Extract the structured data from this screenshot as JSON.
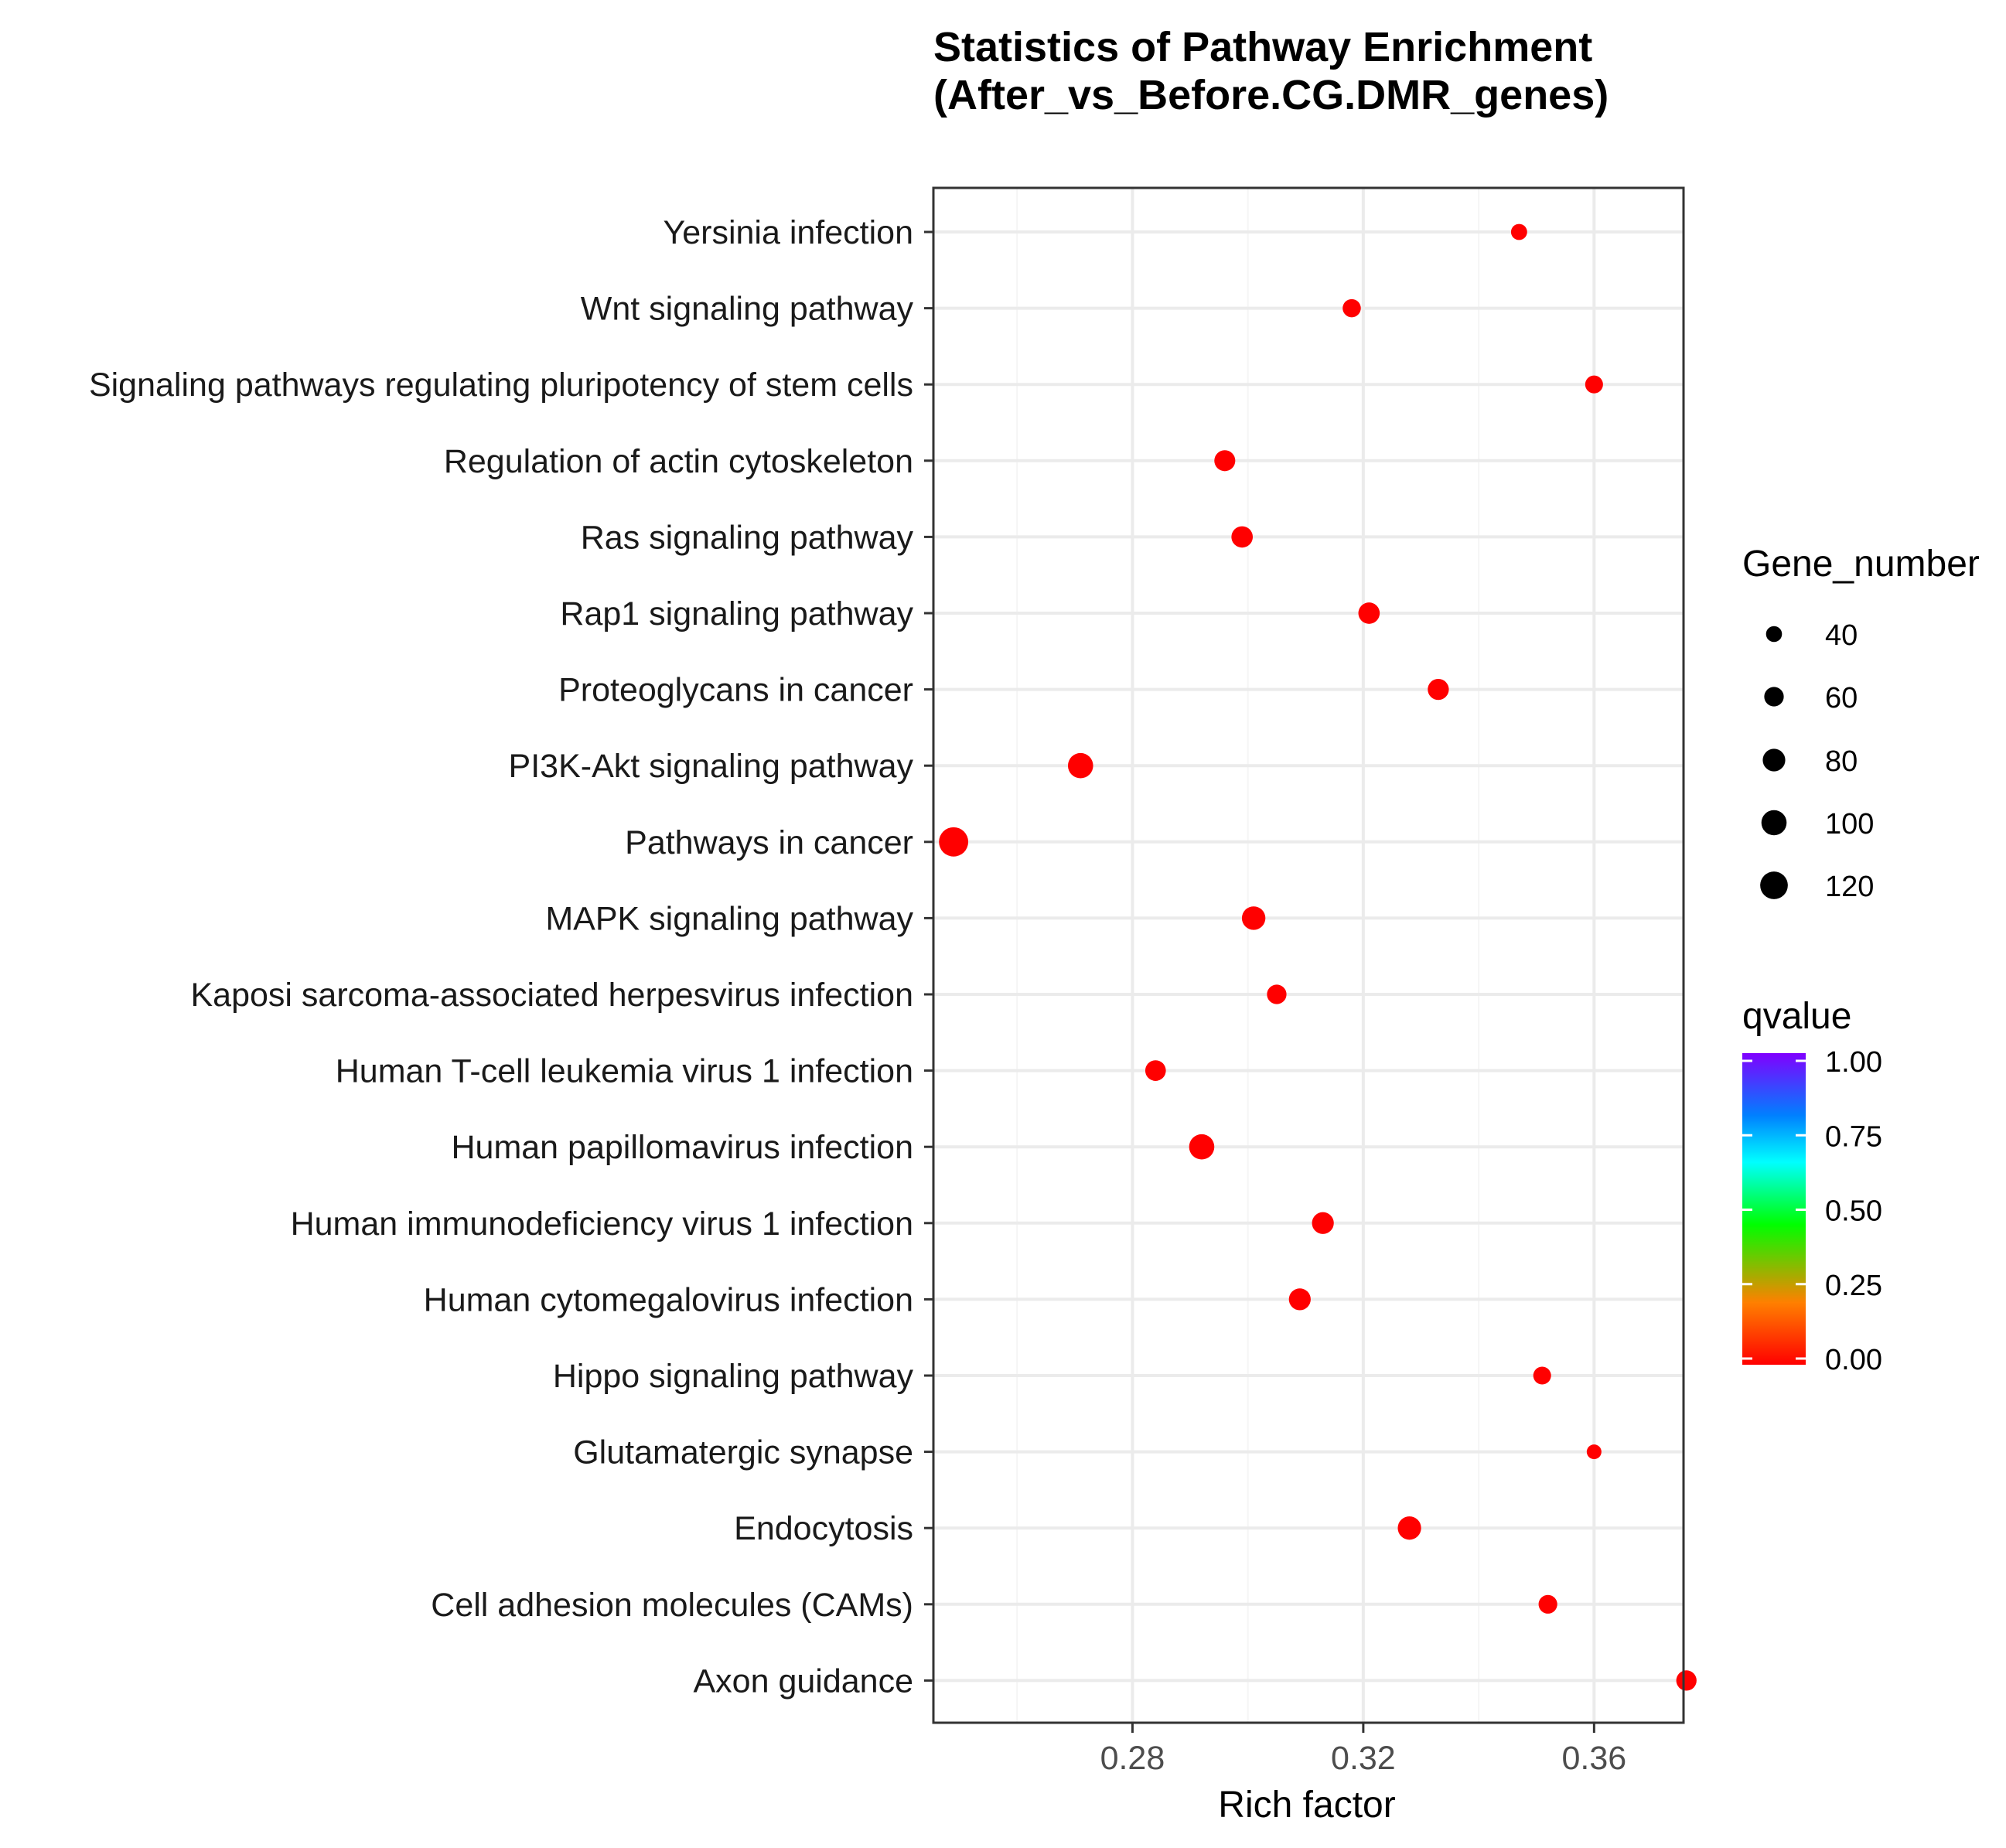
{
  "chart_data": {
    "type": "scatter",
    "title": "Statistics of Pathway Enrichment",
    "subtitle": "(After_vs_Before.CG.DMR_genes)",
    "xlabel": "Rich factor",
    "ylabel": "",
    "xlim": [
      0.2455,
      0.3755
    ],
    "xticks": [
      0.28,
      0.32,
      0.36
    ],
    "xtick_labels": [
      "0.28",
      "0.32",
      "0.36"
    ],
    "minor_xticks": [
      0.26,
      0.3,
      0.34
    ],
    "grid": true,
    "points": [
      {
        "pathway": "Yersinia infection",
        "rich_factor": 0.347,
        "gene_number": 41,
        "qvalue": 0.0
      },
      {
        "pathway": "Wnt signaling pathway",
        "rich_factor": 0.318,
        "gene_number": 52,
        "qvalue": 0.0
      },
      {
        "pathway": "Signaling pathways regulating pluripotency of stem cells",
        "rich_factor": 0.36,
        "gene_number": 50,
        "qvalue": 0.0
      },
      {
        "pathway": "Regulation of actin cytoskeleton",
        "rich_factor": 0.296,
        "gene_number": 69,
        "qvalue": 0.0
      },
      {
        "pathway": "Ras signaling pathway",
        "rich_factor": 0.299,
        "gene_number": 72,
        "qvalue": 0.0
      },
      {
        "pathway": "Rap1 signaling pathway",
        "rich_factor": 0.321,
        "gene_number": 72,
        "qvalue": 0.0
      },
      {
        "pathway": "Proteoglycans in cancer",
        "rich_factor": 0.333,
        "gene_number": 70,
        "qvalue": 0.0
      },
      {
        "pathway": "PI3K-Akt signaling pathway",
        "rich_factor": 0.271,
        "gene_number": 100,
        "qvalue": 0.0
      },
      {
        "pathway": "Pathways in cancer",
        "rich_factor": 0.249,
        "gene_number": 135,
        "qvalue": 0.0
      },
      {
        "pathway": "MAPK signaling pathway",
        "rich_factor": 0.301,
        "gene_number": 87,
        "qvalue": 0.0
      },
      {
        "pathway": "Kaposi sarcoma-associated herpesvirus infection",
        "rich_factor": 0.305,
        "gene_number": 60,
        "qvalue": 0.0
      },
      {
        "pathway": "Human T-cell leukemia virus 1 infection",
        "rich_factor": 0.284,
        "gene_number": 67,
        "qvalue": 0.0
      },
      {
        "pathway": "Human papillomavirus infection",
        "rich_factor": 0.292,
        "gene_number": 100,
        "qvalue": 0.0
      },
      {
        "pathway": "Human immunodeficiency virus 1 infection",
        "rich_factor": 0.313,
        "gene_number": 75,
        "qvalue": 0.0
      },
      {
        "pathway": "Human cytomegalovirus infection",
        "rich_factor": 0.309,
        "gene_number": 75,
        "qvalue": 0.0
      },
      {
        "pathway": "Hippo signaling pathway",
        "rich_factor": 0.351,
        "gene_number": 50,
        "qvalue": 0.0
      },
      {
        "pathway": "Glutamatergic synapse",
        "rich_factor": 0.36,
        "gene_number": 34,
        "qvalue": 0.0
      },
      {
        "pathway": "Endocytosis",
        "rich_factor": 0.328,
        "gene_number": 86,
        "qvalue": 0.0
      },
      {
        "pathway": "Cell adhesion molecules (CAMs)",
        "rich_factor": 0.352,
        "gene_number": 55,
        "qvalue": 0.0
      },
      {
        "pathway": "Axon guidance",
        "rich_factor": 0.376,
        "gene_number": 65,
        "qvalue": 0.0
      }
    ],
    "size_legend": {
      "title": "Gene_number",
      "breaks": [
        40,
        60,
        80,
        100,
        120
      ],
      "labels": [
        "40",
        "60",
        "80",
        "100",
        "120"
      ]
    },
    "color_legend": {
      "title": "qvalue",
      "ticks": [
        1.0,
        0.75,
        0.5,
        0.25,
        0.0
      ],
      "labels": [
        "1.00",
        "0.75",
        "0.50",
        "0.25",
        "0.00"
      ],
      "colors": [
        "#ff0000",
        "#ff8000",
        "#00ff00",
        "#00ffff",
        "#0080ff",
        "#8000ff"
      ]
    },
    "colors": {
      "point": "#ff0000",
      "panel_border": "#333333",
      "grid_major": "#ebebeb",
      "grid_minor": "#f5f5f5"
    }
  }
}
